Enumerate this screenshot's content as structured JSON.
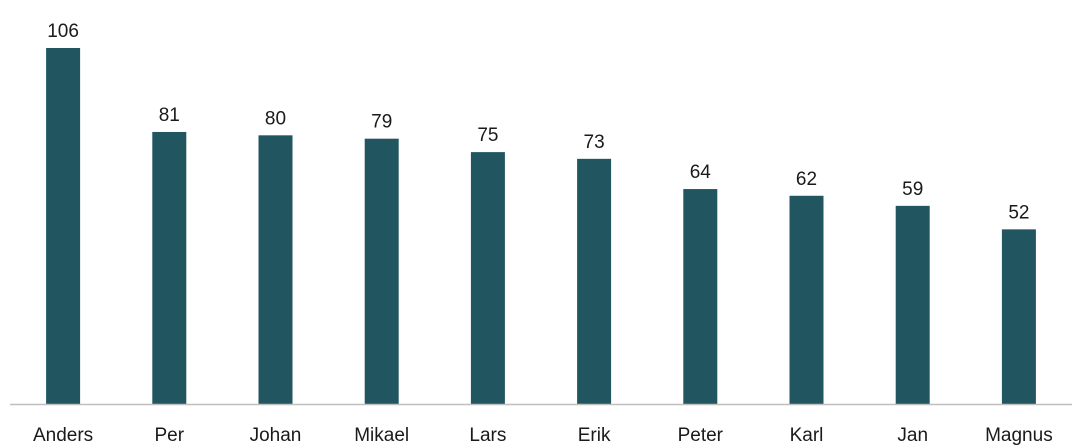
{
  "chart_data": {
    "type": "bar",
    "title": "",
    "xlabel": "",
    "ylabel": "",
    "categories": [
      "Anders",
      "Per",
      "Johan",
      "Mikael",
      "Lars",
      "Erik",
      "Peter",
      "Karl",
      "Jan",
      "Magnus"
    ],
    "values": [
      106,
      81,
      80,
      79,
      75,
      73,
      64,
      62,
      59,
      52
    ],
    "ylim": [
      0,
      106
    ],
    "bar_color": "#215660",
    "baseline_color": "#bfbfbf",
    "grid": false,
    "legend": "none",
    "data_labels": true
  }
}
